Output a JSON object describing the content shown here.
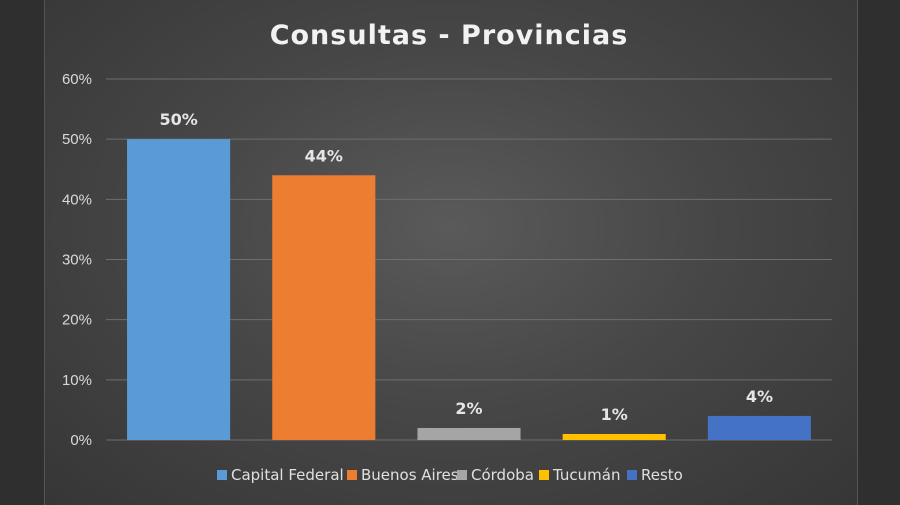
{
  "chart_data": {
    "type": "bar",
    "title": "Consultas - Provincias",
    "categories": [
      "Capital Federal",
      "Buenos Aires",
      "Córdoba",
      "Tucumán",
      "Resto"
    ],
    "values": [
      50,
      44,
      2,
      1,
      4
    ],
    "data_labels": [
      "50%",
      "44%",
      "2%",
      "1%",
      "4%"
    ],
    "colors": [
      "#5b9bd5",
      "#ed7d31",
      "#a5a5a5",
      "#ffc000",
      "#4472c4"
    ],
    "ylim": [
      0,
      60
    ],
    "yticks": [
      0,
      10,
      20,
      30,
      40,
      50,
      60
    ],
    "ytick_labels": [
      "0%",
      "10%",
      "20%",
      "30%",
      "40%",
      "50%",
      "60%"
    ],
    "grid": true,
    "legend": "bottom",
    "xlabel": "",
    "ylabel": ""
  }
}
